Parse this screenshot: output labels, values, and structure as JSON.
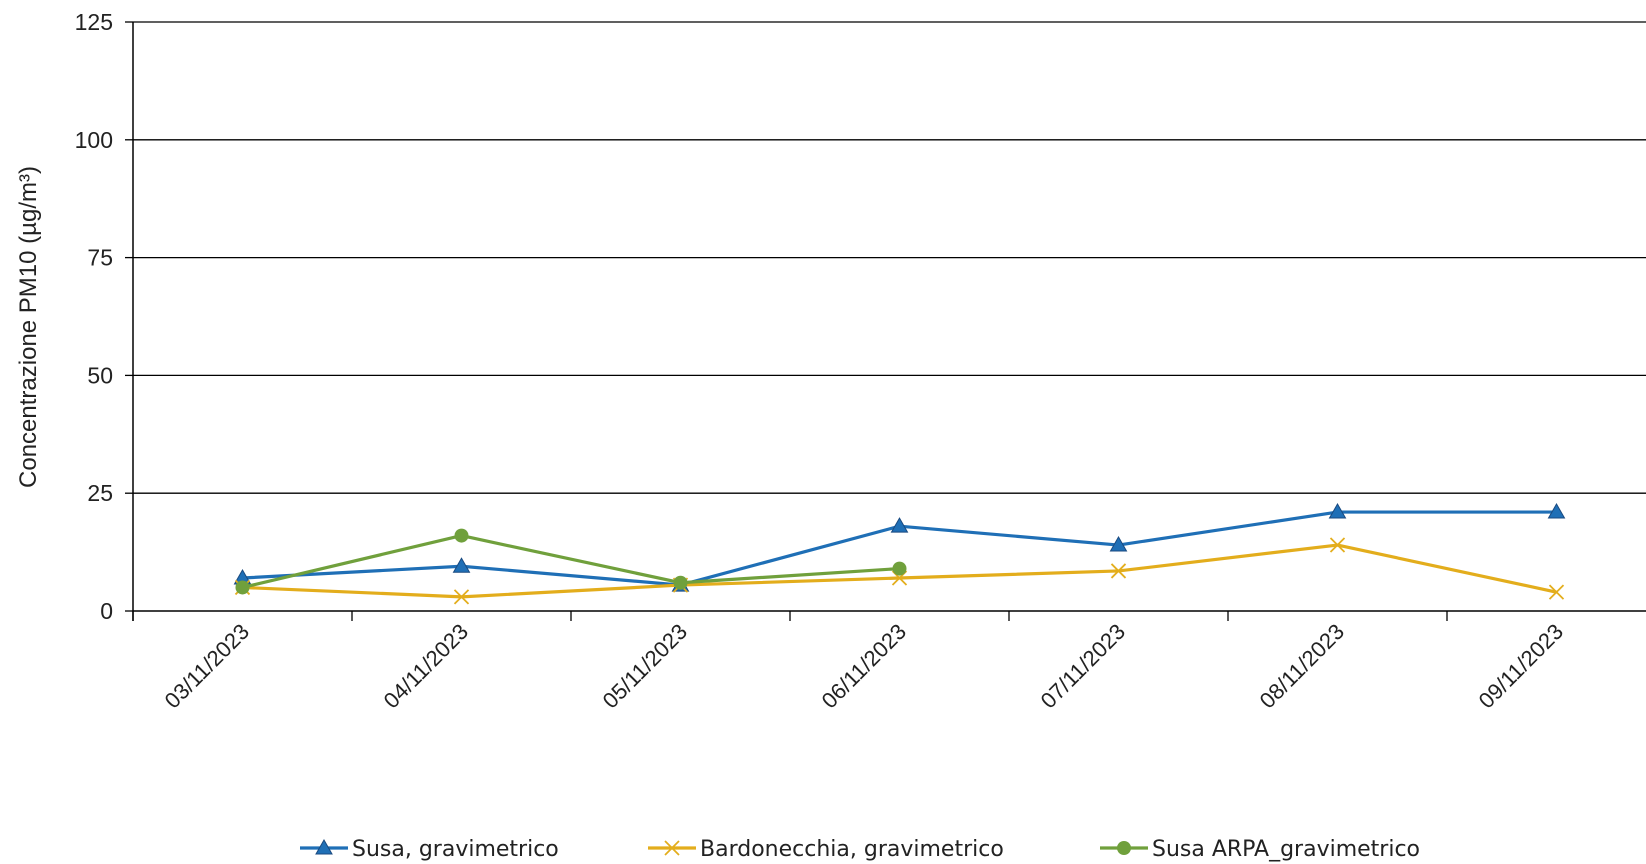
{
  "chart_data": {
    "type": "line",
    "x": [
      "03/11/2023",
      "04/11/2023",
      "05/11/2023",
      "06/11/2023",
      "07/11/2023",
      "08/11/2023",
      "09/11/2023"
    ],
    "ylabel": "Concentrazione PM10 (µg/m³)",
    "ylim": [
      0,
      125
    ],
    "yticks": [
      "0",
      "25",
      "50",
      "75",
      "100",
      "125"
    ],
    "grid": true,
    "legend_position": "bottom",
    "series": [
      {
        "name": "Susa, gravimetrico",
        "color": "#1f6fb6",
        "marker": "triangle",
        "values": [
          7,
          9.5,
          5.5,
          18,
          14,
          21,
          21
        ]
      },
      {
        "name": "Bardonecchia,  gravimetrico",
        "color": "#e3ad1c",
        "marker": "x",
        "values": [
          5,
          3,
          5.5,
          7,
          8.5,
          14,
          4
        ]
      },
      {
        "name": "Susa ARPA_gravimetrico",
        "color": "#70a03c",
        "marker": "circle",
        "values": [
          5,
          16,
          6,
          9,
          null,
          null,
          null
        ]
      }
    ]
  }
}
